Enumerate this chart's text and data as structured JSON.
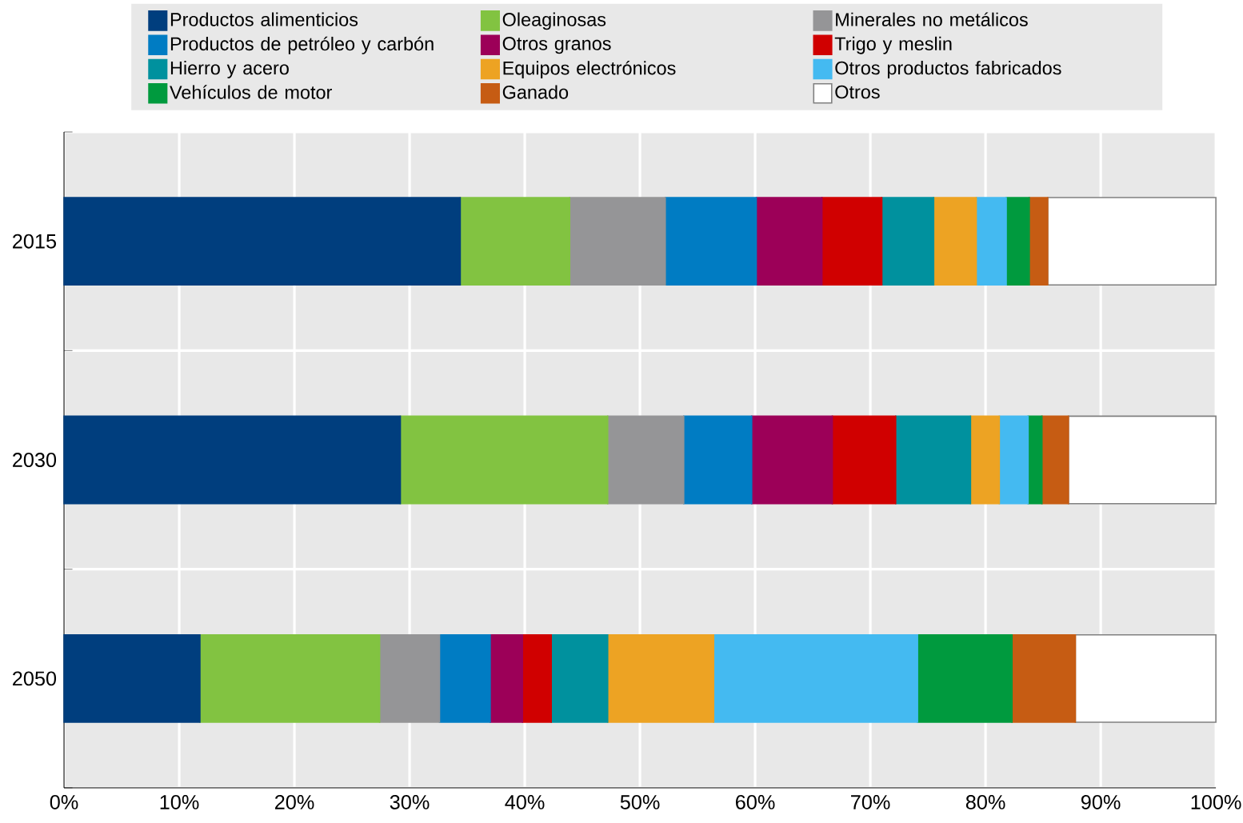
{
  "chart_data": {
    "type": "bar",
    "orientation": "horizontal",
    "stacked": true,
    "grid": true,
    "legend": "top",
    "categories": [
      "2015",
      "2030",
      "2050"
    ],
    "series": [
      {
        "name": "Productos alimenticios",
        "color": "#003e7e",
        "values": [
          34.4,
          29.2,
          11.8
        ]
      },
      {
        "name": "Oleaginosas",
        "color": "#82c341",
        "values": [
          9.5,
          18.0,
          15.6
        ]
      },
      {
        "name": "Minerales no metálicos",
        "color": "#959597",
        "values": [
          8.3,
          6.6,
          5.2
        ]
      },
      {
        "name": "Productos de petróleo y carbón",
        "color": "#007cc3",
        "values": [
          7.9,
          5.9,
          4.4
        ]
      },
      {
        "name": "Otros granos",
        "color": "#9c0058",
        "values": [
          5.7,
          7.0,
          2.8
        ]
      },
      {
        "name": "Trigo y meslin",
        "color": "#d00000",
        "values": [
          5.2,
          5.5,
          2.5
        ]
      },
      {
        "name": "Hierro y acero",
        "color": "#00919e",
        "values": [
          4.5,
          6.5,
          4.9
        ]
      },
      {
        "name": "Equipos electrónicos",
        "color": "#eda323",
        "values": [
          3.7,
          2.5,
          9.2
        ]
      },
      {
        "name": "Otros productos fabricados",
        "color": "#44baf1",
        "values": [
          2.6,
          2.5,
          17.7
        ]
      },
      {
        "name": "Vehículos de motor",
        "color": "#009a3e",
        "values": [
          2.0,
          1.2,
          8.2
        ]
      },
      {
        "name": "Ganado",
        "color": "#c65c13",
        "values": [
          1.6,
          2.3,
          5.5
        ]
      },
      {
        "name": "Otros",
        "color": "#ffffff",
        "values": [
          14.6,
          12.8,
          12.2
        ]
      }
    ],
    "xlim": [
      0,
      100
    ],
    "xticks": [
      {
        "value": 0,
        "label": "0%"
      },
      {
        "value": 10,
        "label": "10%"
      },
      {
        "value": 20,
        "label": "20%"
      },
      {
        "value": 30,
        "label": "30%"
      },
      {
        "value": 40,
        "label": "40%"
      },
      {
        "value": 50,
        "label": "50%"
      },
      {
        "value": 60,
        "label": "60%"
      },
      {
        "value": 70,
        "label": "70%"
      },
      {
        "value": 80,
        "label": "80%"
      },
      {
        "value": 90,
        "label": "90%"
      },
      {
        "value": 100,
        "label": "100%"
      }
    ]
  }
}
